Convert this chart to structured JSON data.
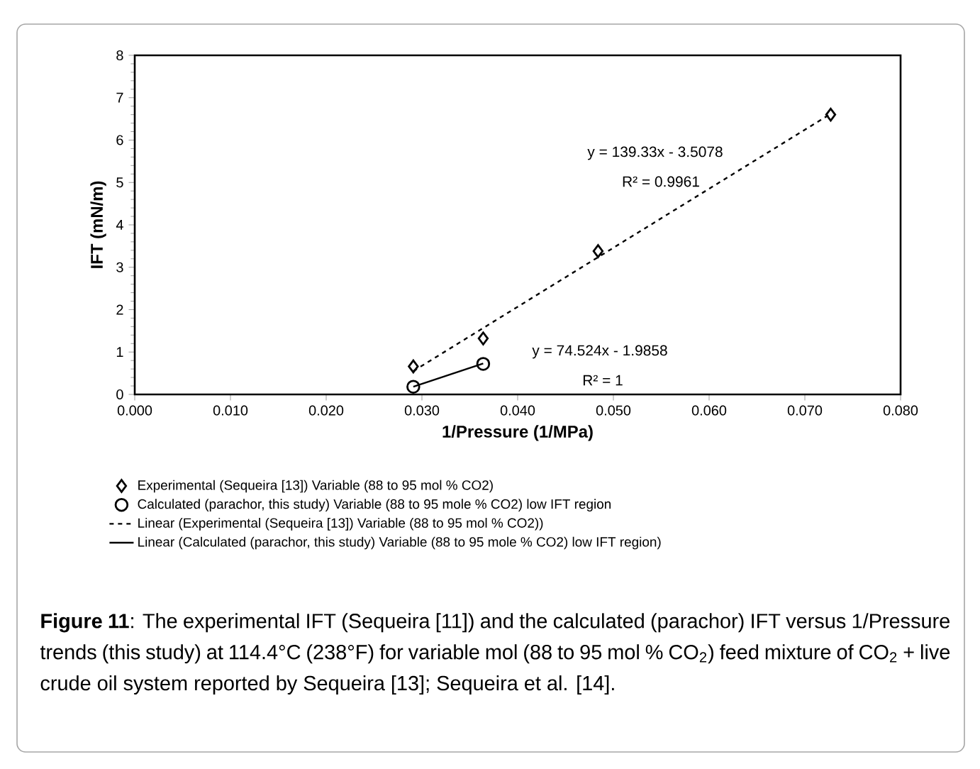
{
  "chart_data": {
    "type": "scatter",
    "xlabel": "1/Pressure (1/MPa)",
    "ylabel": "IFT (mN/m)",
    "xlim": [
      0,
      0.08
    ],
    "ylim": [
      0,
      8
    ],
    "xticks": [
      {
        "value": 0,
        "label": "0.000"
      },
      {
        "value": 0.01,
        "label": "0.010"
      },
      {
        "value": 0.02,
        "label": "0.020"
      },
      {
        "value": 0.03,
        "label": "0.030"
      },
      {
        "value": 0.04,
        "label": "0.040"
      },
      {
        "value": 0.05,
        "label": "0.050"
      },
      {
        "value": 0.06,
        "label": "0.060"
      },
      {
        "value": 0.07,
        "label": "0.070"
      },
      {
        "value": 0.08,
        "label": "0.080"
      }
    ],
    "yticks": [
      0,
      1,
      2,
      3,
      4,
      5,
      6,
      7,
      8
    ],
    "legend": "bottom",
    "series": [
      {
        "name": "Experimental (Sequeira [13]) Variable (88 to 95 mol % CO2)",
        "marker": "diamond",
        "color": "#000000",
        "x": [
          0.0291,
          0.0364,
          0.0484,
          0.0727
        ],
        "values": [
          0.66,
          1.32,
          3.38,
          6.6
        ]
      },
      {
        "name": "Calculated (parachor, this study) Variable (88 to 95 mole % CO2) low IFT region",
        "marker": "circle",
        "color": "#000000",
        "x": [
          0.0291,
          0.0364
        ],
        "values": [
          0.18,
          0.72
        ]
      },
      {
        "name": "Linear (Experimental (Sequeira [13]) Variable (88 to 95 mol % CO2))",
        "type": "line",
        "line_style": "dashed",
        "color": "#000000",
        "x": [
          0.0291,
          0.0727
        ],
        "values": [
          0.55,
          6.62
        ]
      },
      {
        "name": "Linear (Calculated (parachor, this study) Variable (88 to 95 mole % CO2) low IFT region)",
        "type": "line",
        "line_style": "solid",
        "color": "#000000",
        "x": [
          0.0291,
          0.0364
        ],
        "values": [
          0.18,
          0.73
        ]
      }
    ],
    "annotations": [
      "y = 139.33x - 3.5078",
      "R² = 0.9961",
      "y = 74.524x - 1.9858",
      "R² = 1",
      "**Figure 11**: The experimental IFT (Sequeira [11]) and the calculated (parachor) IFT versus 1/Pressure trends (this study) at 114.4°C (238°F) for variable mol (88 to 95 mol % CO$_{2}$) feed mixture of CO$_{2}$ + live crude oil system reported by Sequeira [13]; Sequeira et al. [14]."
    ]
  }
}
